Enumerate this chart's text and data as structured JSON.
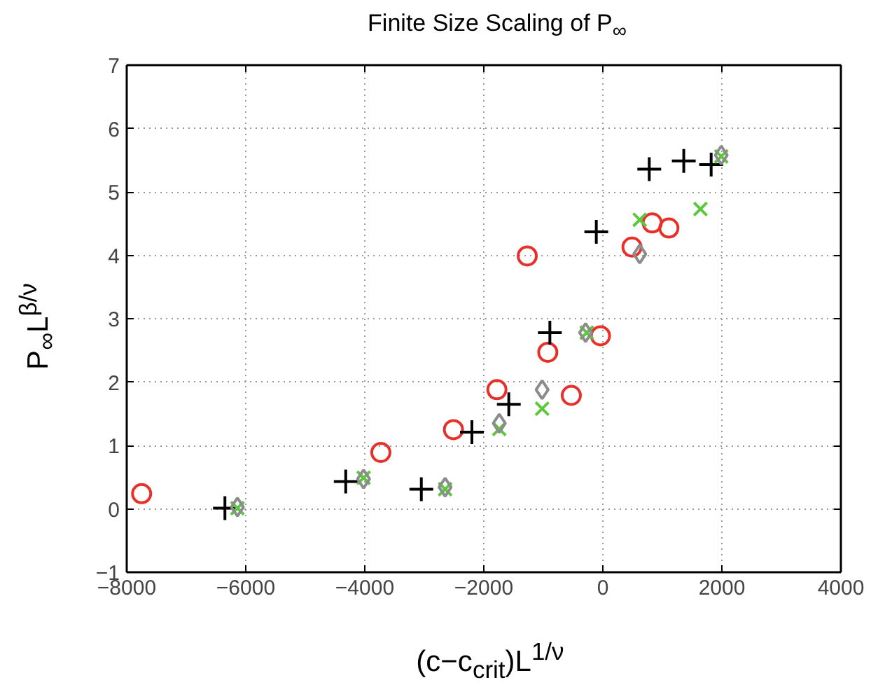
{
  "chart_data": {
    "type": "scatter",
    "title": "Finite Size Scaling of P$_{∞}$",
    "xlabel": "(c−c$_{crit}$)L$^{1/ν}$",
    "ylabel": "P$_{∞}$L$^{β/ν}$",
    "xlim": [
      -8000,
      4000
    ],
    "xticks": [
      -8000,
      -6000,
      -4000,
      -2000,
      0,
      2000,
      4000
    ],
    "ylim": [
      -1,
      7
    ],
    "yticks": [
      -1,
      0,
      1,
      2,
      3,
      4,
      5,
      6,
      7
    ],
    "grid": true,
    "series": [
      {
        "color": "#e8302a",
        "marker": "circle",
        "x": [
          -7750,
          -3730,
          -2510,
          -1780,
          -1270,
          -925,
          -40,
          -530,
          490,
          830,
          1110
        ],
        "values": [
          0.24,
          0.89,
          1.25,
          1.88,
          3.99,
          2.47,
          2.73,
          1.79,
          4.13,
          4.51,
          4.43
        ]
      },
      {
        "color": "#000000",
        "marker": "cross",
        "x": [
          -6350,
          -4320,
          -3050,
          -2200,
          -1580,
          -890,
          -110,
          780,
          1360,
          1820
        ],
        "values": [
          0.01,
          0.43,
          0.31,
          1.21,
          1.65,
          2.78,
          4.37,
          5.36,
          5.49,
          5.43
        ]
      },
      {
        "color": "#5cc83c",
        "marker": "x",
        "x": [
          -6140,
          -4020,
          -2650,
          -1740,
          -1020,
          -270,
          620,
          1640,
          1990
        ],
        "values": [
          0.01,
          0.49,
          0.31,
          1.26,
          1.58,
          2.78,
          4.56,
          4.73,
          5.56
        ]
      },
      {
        "color": "#8c8c8c",
        "marker": "diamond",
        "x": [
          -6140,
          -4020,
          -2650,
          -1740,
          -1020,
          -290,
          620,
          1990
        ],
        "values": [
          0.03,
          0.47,
          0.34,
          1.35,
          1.88,
          2.78,
          4.02,
          5.58
        ]
      }
    ]
  }
}
